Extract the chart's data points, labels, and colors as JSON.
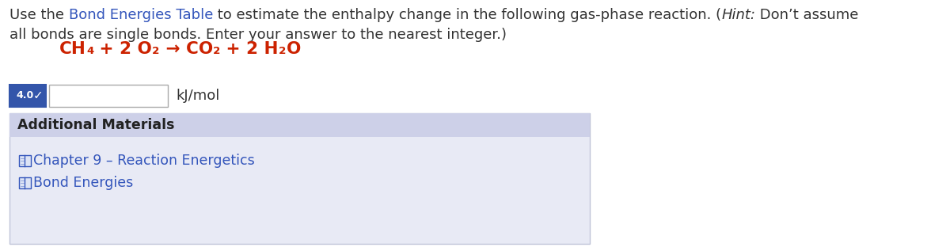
{
  "bg_color": "#ffffff",
  "fig_width": 12.0,
  "fig_height": 3.12,
  "dpi": 100,
  "main_text_color": "#333333",
  "link_color": "#3355bb",
  "equation_color": "#cc2200",
  "main_text_fontsize": 13.0,
  "equation_fontsize": 15.5,
  "link_fontsize": 12.5,
  "line1_parts": [
    {
      "text": "Use the ",
      "color": "#333333",
      "italic": false
    },
    {
      "text": "Bond Energies Table",
      "color": "#3355bb",
      "italic": false
    },
    {
      "text": " to estimate the enthalpy change in the following gas-phase reaction. (",
      "color": "#333333",
      "italic": false
    },
    {
      "text": "Hint:",
      "color": "#333333",
      "italic": true
    },
    {
      "text": " Don’t assume",
      "color": "#333333",
      "italic": false
    }
  ],
  "line2": "all bonds are single bonds. Enter your answer to the nearest integer.)",
  "additional_materials_header": "Additional Materials",
  "additional_materials_header_bg": "#cdd0e8",
  "additional_materials_bg": "#e8eaf5",
  "additional_materials_border": "#c0c4d8",
  "link1_text": "Chapter 9 – Reaction Energetics",
  "link2_text": "Bond Energies",
  "badge_bg": "#3355aa",
  "badge_text": "4.0",
  "kj_mol_text": "kJ/mol"
}
